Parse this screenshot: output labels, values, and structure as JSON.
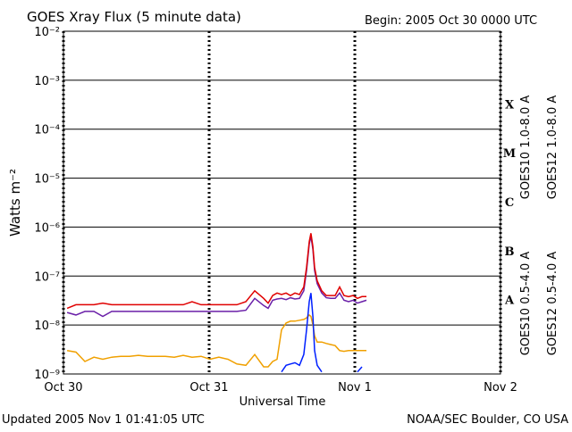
{
  "chart_data": {
    "type": "line",
    "title": "GOES Xray Flux (5 minute data)",
    "subtitle": "Begin:  2005 Oct 30 0000 UTC",
    "x_label": "Universal Time",
    "y_label": "Watts m⁻²",
    "footer_left": "Updated 2005 Nov  1 01:41:05 UTC",
    "footer_right": "NOAA/SEC Boulder, CO USA",
    "log_y": true,
    "grid": true,
    "xlim": [
      0,
      3
    ],
    "xticks": [
      {
        "value": 0,
        "label": "Oct 30"
      },
      {
        "value": 1,
        "label": "Oct 31"
      },
      {
        "value": 2,
        "label": "Nov 1"
      },
      {
        "value": 3,
        "label": "Nov 2"
      }
    ],
    "ylim": [
      1e-09,
      0.01
    ],
    "yticks": [
      {
        "value": 1e-09,
        "label": "10⁻⁹"
      },
      {
        "value": 1e-08,
        "label": "10⁻⁸"
      },
      {
        "value": 1e-07,
        "label": "10⁻⁷"
      },
      {
        "value": 1e-06,
        "label": "10⁻⁶"
      },
      {
        "value": 1e-05,
        "label": "10⁻⁵"
      },
      {
        "value": 0.0001,
        "label": "10⁻⁴"
      },
      {
        "value": 0.001,
        "label": "10⁻³"
      },
      {
        "value": 0.01,
        "label": "10⁻²"
      }
    ],
    "flare_classes": [
      {
        "label": "A",
        "value": 1e-08
      },
      {
        "label": "B",
        "value": 1e-07
      },
      {
        "label": "C",
        "value": 1e-06
      },
      {
        "label": "M",
        "value": 1e-05
      },
      {
        "label": "X",
        "value": 0.0001
      }
    ],
    "x": [
      0.025,
      0.086,
      0.147,
      0.209,
      0.27,
      0.331,
      0.393,
      0.454,
      0.515,
      0.577,
      0.638,
      0.699,
      0.761,
      0.822,
      0.883,
      0.945,
      1.006,
      1.067,
      1.129,
      1.19,
      1.252,
      1.313,
      1.374,
      1.405,
      1.436,
      1.466,
      1.497,
      1.528,
      1.558,
      1.589,
      1.62,
      1.65,
      1.669,
      1.687,
      1.699,
      1.712,
      1.724,
      1.742,
      1.773,
      1.804,
      1.834,
      1.865,
      1.896,
      1.926,
      1.957,
      1.988,
      2.018,
      2.049,
      2.08
    ],
    "series": [
      {
        "name": "GOES10 1.0-8.0 A",
        "color": "#6a1fa8",
        "values": [
          1.8e-08,
          1.6e-08,
          1.9e-08,
          1.9e-08,
          1.5e-08,
          1.9e-08,
          1.9e-08,
          1.9e-08,
          1.9e-08,
          1.9e-08,
          1.9e-08,
          1.9e-08,
          1.9e-08,
          1.9e-08,
          1.9e-08,
          1.9e-08,
          1.9e-08,
          1.9e-08,
          1.9e-08,
          1.9e-08,
          2e-08,
          3.5e-08,
          2.5e-08,
          2.2e-08,
          3.2e-08,
          3.4e-08,
          3.5e-08,
          3.3e-08,
          3.6e-08,
          3.4e-08,
          3.5e-08,
          5e-08,
          1.3e-07,
          4.5e-07,
          6.5e-07,
          3.5e-07,
          1.3e-07,
          7e-08,
          4.5e-08,
          3.6e-08,
          3.5e-08,
          3.5e-08,
          4.5e-08,
          3.2e-08,
          3e-08,
          3.2e-08,
          2.8e-08,
          3e-08,
          3.2e-08
        ]
      },
      {
        "name": "GOES12 1.0-8.0 A",
        "color": "#e00000",
        "values": [
          2.2e-08,
          2.6e-08,
          2.6e-08,
          2.6e-08,
          2.8e-08,
          2.6e-08,
          2.6e-08,
          2.6e-08,
          2.6e-08,
          2.6e-08,
          2.6e-08,
          2.6e-08,
          2.6e-08,
          2.6e-08,
          3e-08,
          2.6e-08,
          2.6e-08,
          2.6e-08,
          2.6e-08,
          2.6e-08,
          3e-08,
          5e-08,
          3.5e-08,
          2.8e-08,
          4e-08,
          4.5e-08,
          4.2e-08,
          4.5e-08,
          4e-08,
          4.5e-08,
          4.2e-08,
          6e-08,
          1.5e-07,
          5e-07,
          7.5e-07,
          4e-07,
          1.5e-07,
          8e-08,
          5e-08,
          4e-08,
          4e-08,
          4e-08,
          6e-08,
          4e-08,
          3.8e-08,
          4e-08,
          3.5e-08,
          3.8e-08,
          3.8e-08
        ]
      },
      {
        "name": "GOES10 0.5-4.0 A",
        "color": "#f0a000",
        "values": [
          3e-09,
          2.8e-09,
          1.8e-09,
          2.2e-09,
          2e-09,
          2.2e-09,
          2.3e-09,
          2.3e-09,
          2.4e-09,
          2.3e-09,
          2.3e-09,
          2.3e-09,
          2.2e-09,
          2.4e-09,
          2.2e-09,
          2.3e-09,
          2e-09,
          2.2e-09,
          2e-09,
          1.6e-09,
          1.5e-09,
          2.5e-09,
          1.4e-09,
          1.4e-09,
          1.8e-09,
          2e-09,
          8e-09,
          1.1e-08,
          1.2e-08,
          1.2e-08,
          1.25e-08,
          1.3e-08,
          1.4e-08,
          1.6e-08,
          1.5e-08,
          1e-08,
          6e-09,
          4.5e-09,
          4.5e-09,
          4.2e-09,
          4e-09,
          3.8e-09,
          3e-09,
          2.9e-09,
          3e-09,
          3e-09,
          3e-09,
          3e-09,
          3e-09
        ]
      },
      {
        "name": "GOES12 0.5-4.0 A",
        "color": "#0020ff",
        "values": [
          null,
          null,
          null,
          null,
          null,
          null,
          null,
          null,
          null,
          null,
          null,
          null,
          null,
          null,
          null,
          null,
          null,
          null,
          null,
          null,
          null,
          null,
          null,
          null,
          null,
          null,
          1.1e-09,
          1.5e-09,
          1.6e-09,
          1.7e-09,
          1.5e-09,
          2.5e-09,
          8e-09,
          3e-08,
          4.5e-08,
          1.5e-08,
          3e-09,
          1.5e-09,
          1.1e-09,
          null,
          null,
          null,
          null,
          null,
          null,
          null,
          1.1e-09,
          1.4e-09,
          null
        ]
      }
    ]
  }
}
